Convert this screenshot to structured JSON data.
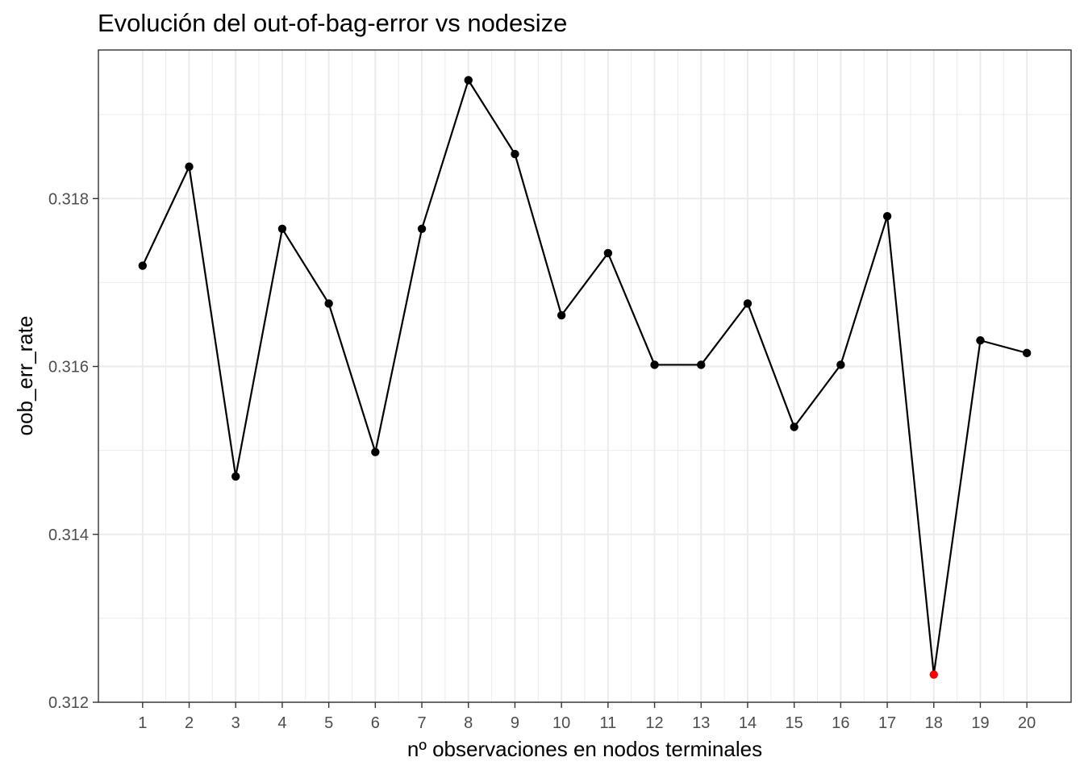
{
  "chart_data": {
    "type": "line",
    "title": "Evolución del out-of-bag-error vs nodesize",
    "xlabel": "nº observaciones en nodos terminales",
    "ylabel": "oob_err_rate",
    "x": [
      1,
      2,
      3,
      4,
      5,
      6,
      7,
      8,
      9,
      10,
      11,
      12,
      13,
      14,
      15,
      16,
      17,
      18,
      19,
      20
    ],
    "x_tick_labels": [
      "1",
      "2",
      "3",
      "4",
      "5",
      "6",
      "7",
      "8",
      "9",
      "10",
      "11",
      "12",
      "13",
      "14",
      "15",
      "16",
      "17",
      "18",
      "19",
      "20"
    ],
    "values": [
      0.3172,
      0.31838,
      0.31469,
      0.31764,
      0.31675,
      0.31498,
      0.31764,
      0.31941,
      0.31853,
      0.31661,
      0.31735,
      0.31602,
      0.31602,
      0.31675,
      0.31528,
      0.31602,
      0.31779,
      0.31233,
      0.31631,
      0.31616
    ],
    "y_ticks": [
      0.312,
      0.314,
      0.316,
      0.318
    ],
    "y_tick_labels": [
      "0.312",
      "0.314",
      "0.316",
      "0.318"
    ],
    "xlim": [
      0.05,
      20.95
    ],
    "ylim": [
      0.312,
      0.31977
    ],
    "highlight": {
      "x": 18,
      "value": 0.31233,
      "color": "#ff0000"
    },
    "point_color": "#000000",
    "line_color": "#000000",
    "grid": true,
    "legend": "none",
    "theme": "bw"
  }
}
